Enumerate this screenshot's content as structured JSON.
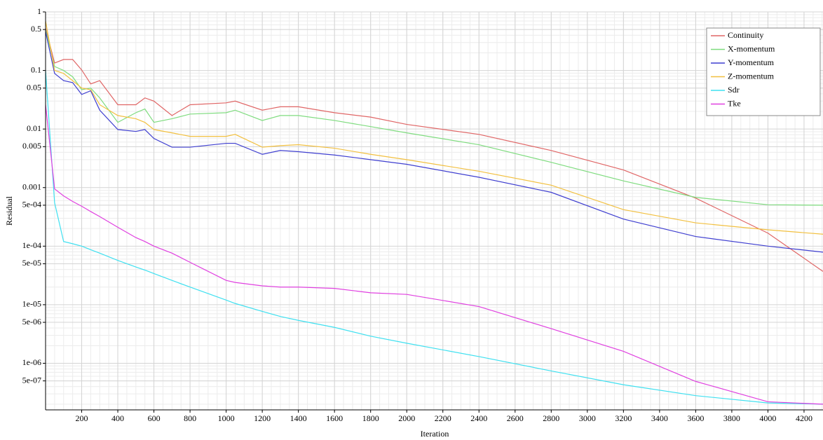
{
  "chart_data": {
    "type": "line",
    "y_label": "Residual",
    "x_label": "Iteration",
    "log_y": true,
    "grid": true,
    "minor_grid": true,
    "legend": "upper right",
    "xlim": [
      0,
      4305
    ],
    "ylim": [
      1.6e-07,
      1
    ],
    "xticks": [
      200,
      400,
      600,
      800,
      1000,
      1200,
      1400,
      1600,
      1800,
      2000,
      2200,
      2400,
      2600,
      2800,
      3000,
      3200,
      3400,
      3600,
      3800,
      4000,
      4200
    ],
    "yticks": [
      1,
      0.5,
      0.1,
      0.05,
      0.01,
      0.005,
      0.001,
      {
        "value": 0.0005,
        "label": "5e-04"
      },
      {
        "value": 0.0001,
        "label": "1e-04"
      },
      {
        "value": 5e-05,
        "label": "5e-05"
      },
      {
        "value": 1e-05,
        "label": "1e-05"
      },
      {
        "value": 5e-06,
        "label": "5e-06"
      },
      {
        "value": 1e-06,
        "label": "1e-06"
      },
      {
        "value": 5e-07,
        "label": "5e-07"
      }
    ],
    "x": [
      0,
      50,
      100,
      150,
      200,
      250,
      300,
      400,
      500,
      550,
      600,
      700,
      800,
      1000,
      1050,
      1200,
      1300,
      1400,
      1600,
      1800,
      2000,
      2400,
      2800,
      3200,
      3600,
      4000,
      4305
    ],
    "series": [
      {
        "name": "Continuity",
        "color": "#e06666",
        "values": [
          0.53,
          0.134,
          0.154,
          0.154,
          0.102,
          0.059,
          0.067,
          0.026,
          0.026,
          0.034,
          0.03,
          0.017,
          0.026,
          0.028,
          0.03,
          0.021,
          0.024,
          0.024,
          0.019,
          0.016,
          0.012,
          0.0081,
          0.0043,
          0.002,
          0.00066,
          0.000167,
          3.7e-05
        ]
      },
      {
        "name": "X-momentum",
        "color": "#7fdc7f",
        "values": [
          0.5,
          0.117,
          0.1,
          0.078,
          0.047,
          0.05,
          0.034,
          0.013,
          0.019,
          0.022,
          0.013,
          0.015,
          0.018,
          0.019,
          0.021,
          0.014,
          0.017,
          0.017,
          0.014,
          0.011,
          0.0086,
          0.0054,
          0.0027,
          0.0013,
          0.00068,
          0.00051,
          0.0005
        ]
      },
      {
        "name": "Y-momentum",
        "color": "#3f3fd0",
        "values": [
          0.46,
          0.089,
          0.067,
          0.062,
          0.039,
          0.045,
          0.021,
          0.0098,
          0.0091,
          0.0098,
          0.0069,
          0.0049,
          0.0049,
          0.0057,
          0.0057,
          0.0037,
          0.0043,
          0.0041,
          0.0036,
          0.003,
          0.0025,
          0.0015,
          0.00083,
          0.00029,
          0.000146,
          0.0001,
          7.9e-05
        ]
      },
      {
        "name": "Z-momentum",
        "color": "#f2c040",
        "values": [
          0.7,
          0.1,
          0.089,
          0.067,
          0.05,
          0.047,
          0.026,
          0.017,
          0.015,
          0.013,
          0.0098,
          0.0086,
          0.0075,
          0.0075,
          0.0081,
          0.0049,
          0.0052,
          0.0054,
          0.0047,
          0.0037,
          0.003,
          0.0019,
          0.0011,
          0.00042,
          0.00025,
          0.00019,
          0.00016
        ]
      },
      {
        "name": "Sdr",
        "color": "#3fe0f0",
        "values": [
          0.1,
          0.00055,
          0.00012,
          0.00011,
          0.0001,
          8.7e-05,
          7.6e-05,
          5.7e-05,
          4.4e-05,
          3.9e-05,
          3.4e-05,
          2.6e-05,
          2e-05,
          1.2e-05,
          1.05e-05,
          7.7e-06,
          6.3e-06,
          5.4e-06,
          4.1e-06,
          2.9e-06,
          2.2e-06,
          1.3e-06,
          7.4e-07,
          4.3e-07,
          2.8e-07,
          2.1e-07,
          2e-07
        ]
      },
      {
        "name": "Tke",
        "color": "#e040e0",
        "values": [
          0.026,
          0.00095,
          0.00072,
          0.00058,
          0.00048,
          0.00039,
          0.00032,
          0.00021,
          0.00014,
          0.00012,
          0.0001,
          7.6e-05,
          5.3e-05,
          2.6e-05,
          2.4e-05,
          2.1e-05,
          2e-05,
          2e-05,
          1.9e-05,
          1.6e-05,
          1.5e-05,
          9.3e-06,
          3.9e-06,
          1.6e-06,
          4.9e-07,
          2.2e-07,
          2e-07
        ]
      }
    ]
  }
}
